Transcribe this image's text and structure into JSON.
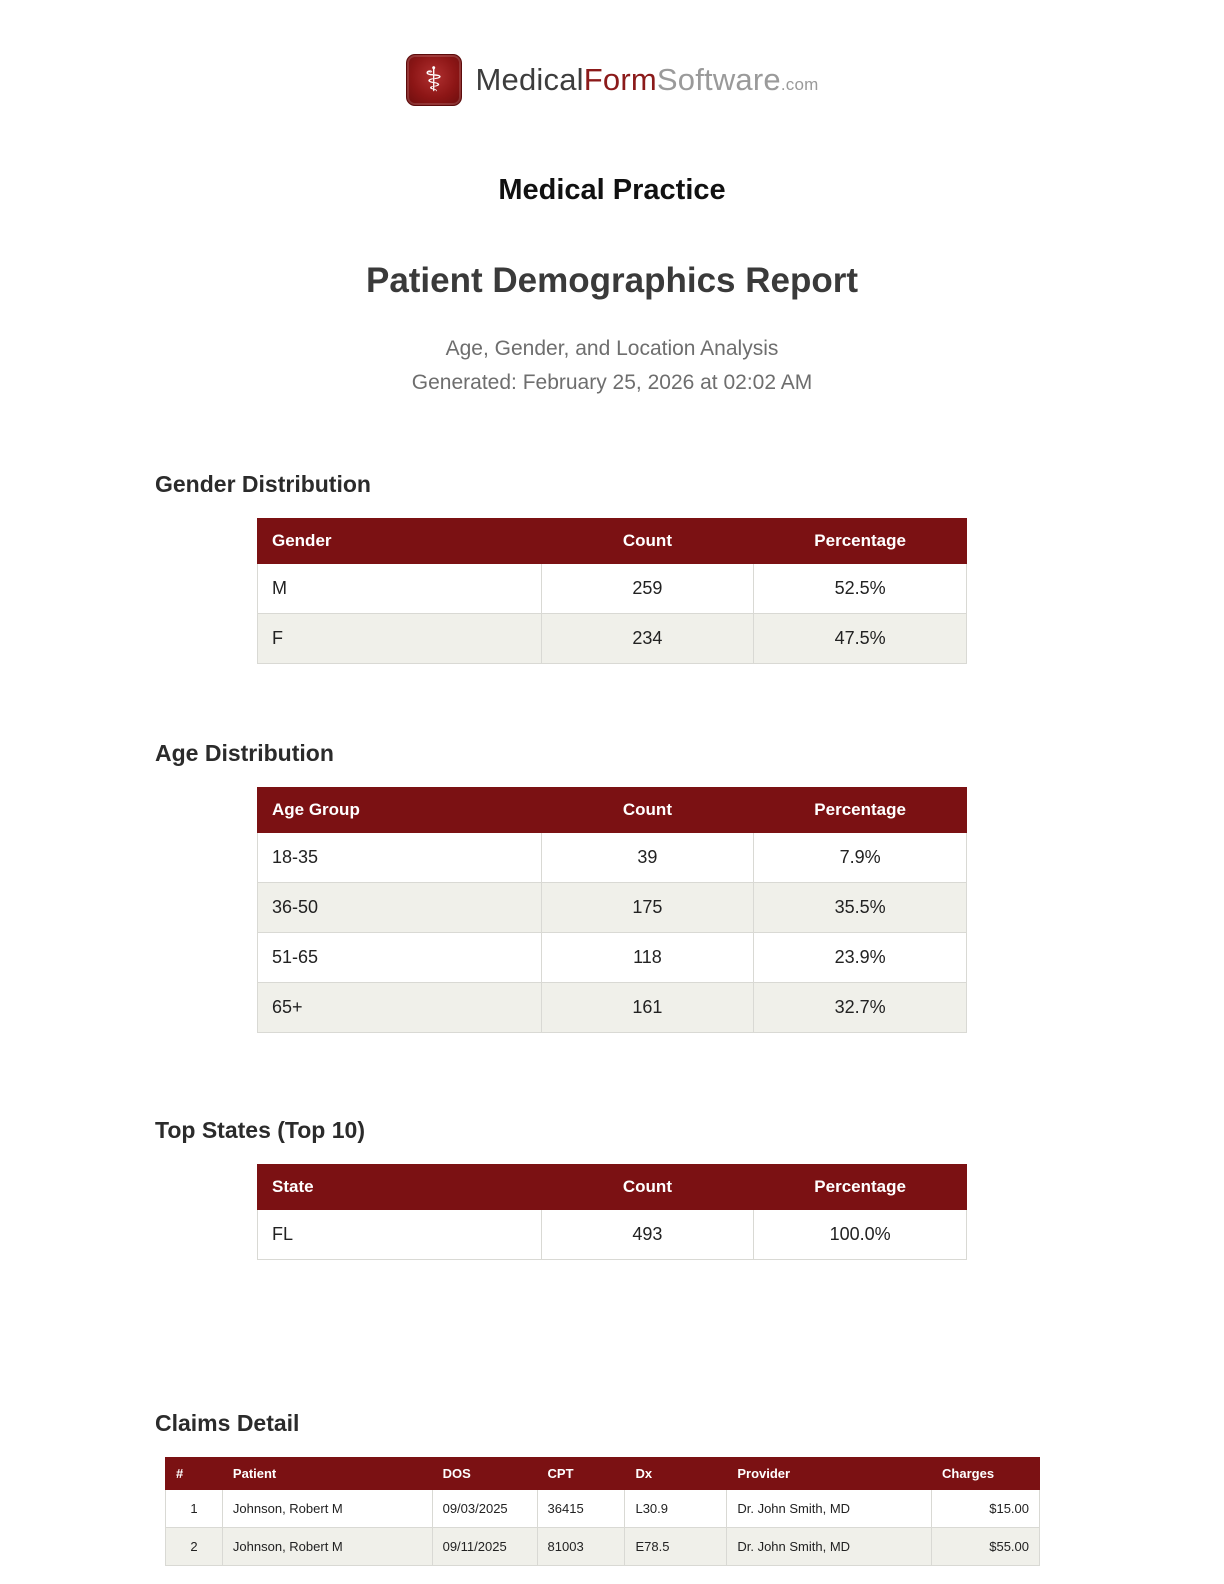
{
  "logo": {
    "icon": "caduceus-icon",
    "glyph": "⚕",
    "medical": "Medical",
    "form": "Form",
    "software": "Software",
    "tld": ".com"
  },
  "header": {
    "practice_name": "Medical Practice",
    "report_title": "Patient Demographics Report",
    "subtitle": "Age, Gender, and Location Analysis",
    "generated": "Generated: February 25, 2026 at 02:02 AM"
  },
  "colors": {
    "table_header_bg": "#7B1113",
    "row_alt_bg": "#F0F0EA",
    "brand_red": "#8B1A1A"
  },
  "sections": {
    "gender": {
      "title": "Gender Distribution",
      "columns": [
        "Gender",
        "Count",
        "Percentage"
      ],
      "rows": [
        [
          "M",
          "259",
          "52.5%"
        ],
        [
          "F",
          "234",
          "47.5%"
        ]
      ]
    },
    "age": {
      "title": "Age Distribution",
      "columns": [
        "Age Group",
        "Count",
        "Percentage"
      ],
      "rows": [
        [
          "18-35",
          "39",
          "7.9%"
        ],
        [
          "36-50",
          "175",
          "35.5%"
        ],
        [
          "51-65",
          "118",
          "23.9%"
        ],
        [
          "65+",
          "161",
          "32.7%"
        ]
      ]
    },
    "states": {
      "title": "Top States (Top 10)",
      "columns": [
        "State",
        "Count",
        "Percentage"
      ],
      "rows": [
        [
          "FL",
          "493",
          "100.0%"
        ]
      ]
    },
    "claims": {
      "title": "Claims Detail",
      "columns": [
        "#",
        "Patient",
        "DOS",
        "CPT",
        "Dx",
        "Provider",
        "Charges"
      ],
      "rows": [
        [
          "1",
          "Johnson, Robert M",
          "09/03/2025",
          "36415",
          "L30.9",
          "Dr. John Smith, MD",
          "$15.00"
        ],
        [
          "2",
          "Johnson, Robert M",
          "09/11/2025",
          "81003",
          "E78.5",
          "Dr. John Smith, MD",
          "$55.00"
        ]
      ]
    }
  }
}
